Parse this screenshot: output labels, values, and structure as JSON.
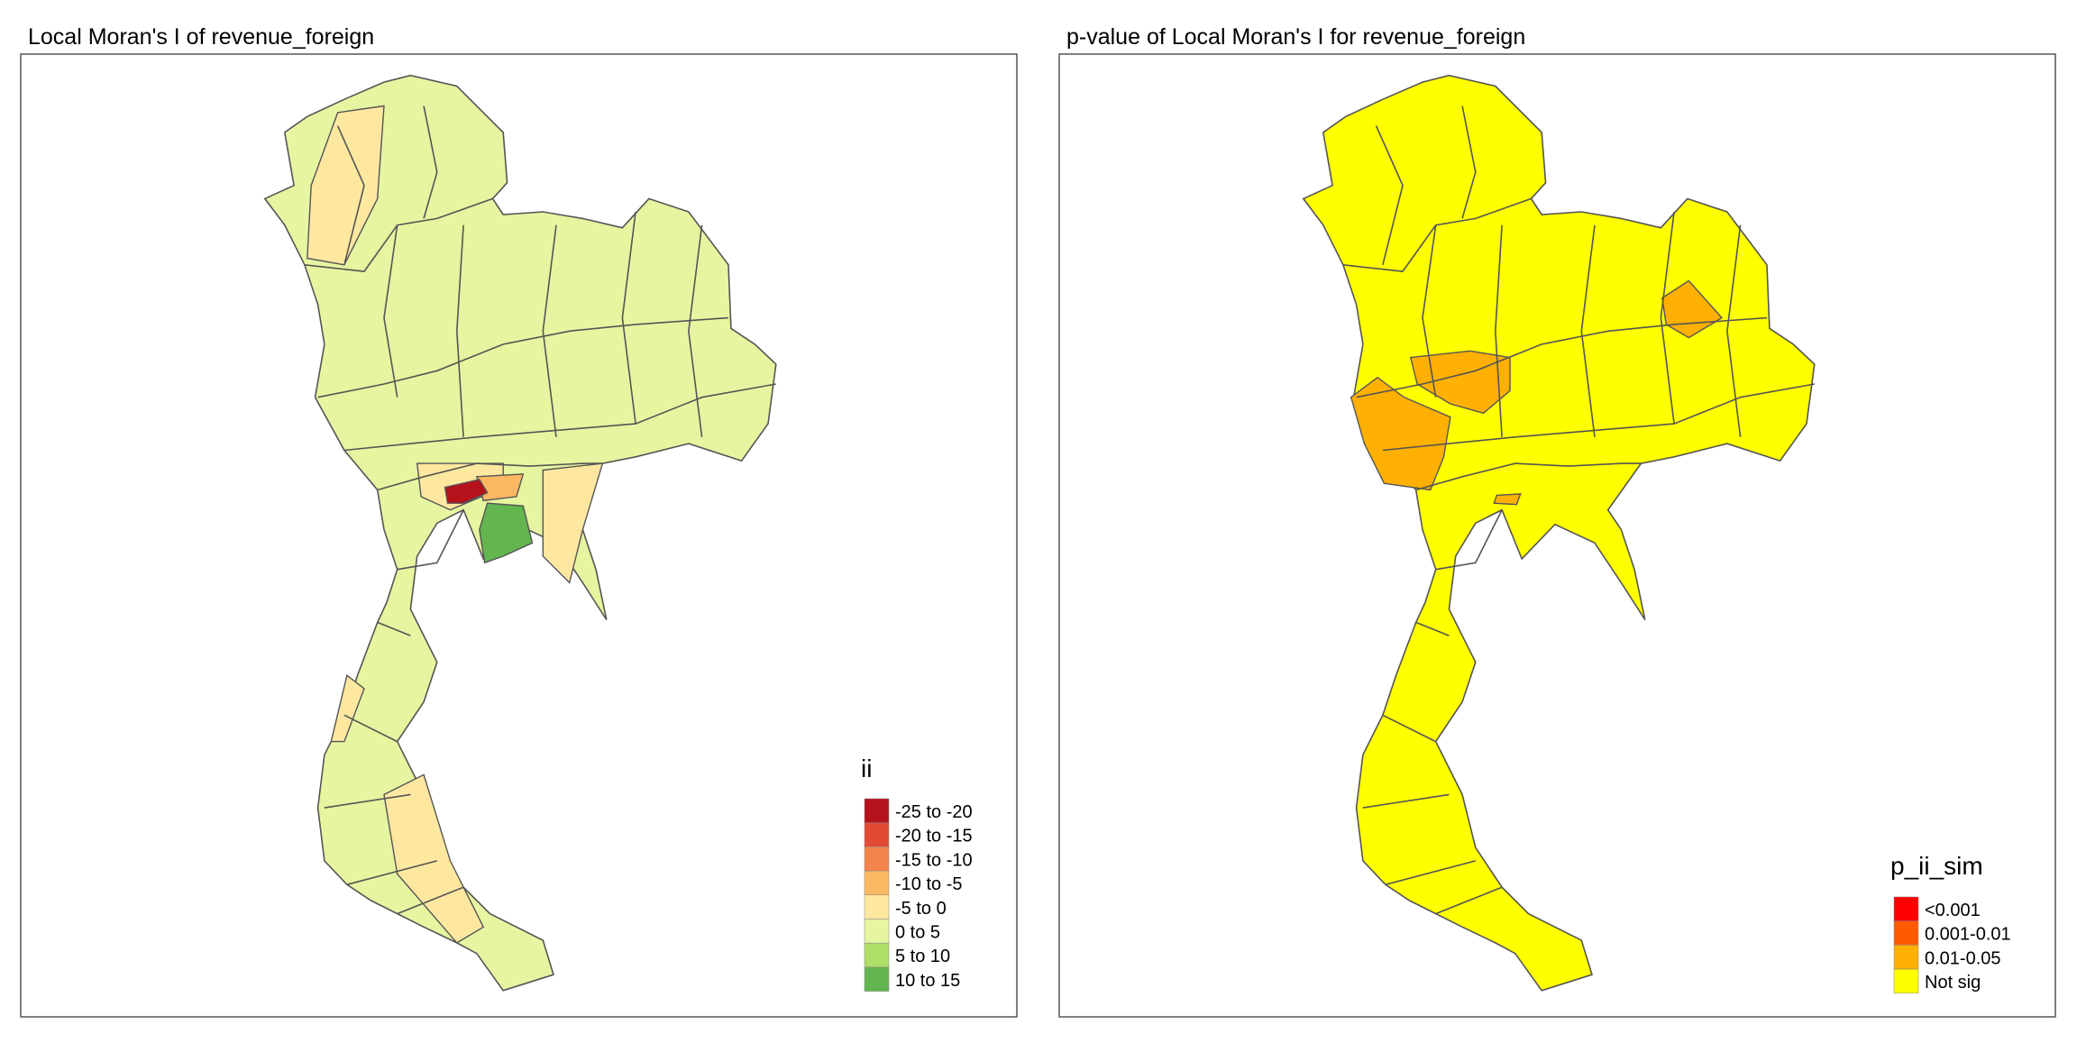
{
  "panels": [
    {
      "title": "Local Moran's I of revenue_foreign",
      "legend": {
        "title": "ii",
        "items": [
          {
            "label": "-25 to -20",
            "color": "#b5121b"
          },
          {
            "label": "-20 to -15",
            "color": "#e34a33"
          },
          {
            "label": "-15 to -10",
            "color": "#f4854a"
          },
          {
            "label": "-10 to -5",
            "color": "#fdb863"
          },
          {
            "label": "-5 to 0",
            "color": "#fee8a0"
          },
          {
            "label": "0 to 5",
            "color": "#e6f5a0"
          },
          {
            "label": "5 to 10",
            "color": "#aede66"
          },
          {
            "label": "10 to 15",
            "color": "#63b550"
          }
        ]
      }
    },
    {
      "title": "p-value of Local Moran's I for revenue_foreign",
      "legend": {
        "title": "p_ii_sim",
        "items": [
          {
            "label": "<0.001",
            "color": "#ff0000"
          },
          {
            "label": "0.001-0.01",
            "color": "#ff5a00"
          },
          {
            "label": "0.01-0.05",
            "color": "#ffb000"
          },
          {
            "label": "Not sig",
            "color": "#ffff00"
          }
        ]
      }
    }
  ]
}
